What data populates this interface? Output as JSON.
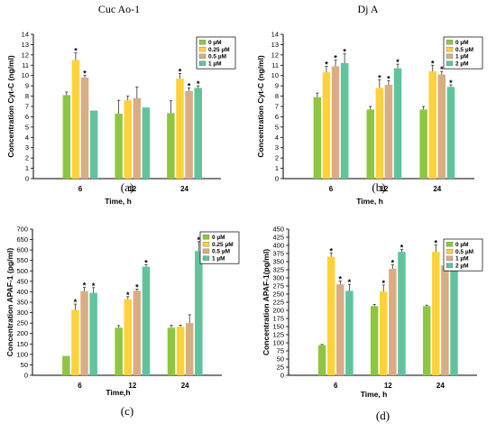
{
  "titles": [
    "Cuc Ao-1",
    "Dj A"
  ],
  "chart_data": [
    {
      "type": "bar",
      "panel_label": "(a)",
      "xlabel": "Time, h",
      "ylabel": "Concentration Cyt-C (ng/ml)",
      "ylim": [
        0,
        14
      ],
      "yticks": [
        0,
        1,
        2,
        3,
        4,
        5,
        6,
        7,
        8,
        9,
        10,
        11,
        12,
        13,
        14
      ],
      "categories": [
        "6",
        "12",
        "24"
      ],
      "series": [
        {
          "name": "0 µM",
          "color": "#8ec641",
          "values": [
            8.1,
            6.3,
            6.35
          ],
          "errors": [
            0.3,
            1.3,
            1.2
          ],
          "stars": [
            false,
            false,
            false
          ]
        },
        {
          "name": "0.25 µM",
          "color": "#ffd23a",
          "values": [
            11.5,
            7.6,
            9.7
          ],
          "errors": [
            0.7,
            0.4,
            0.5
          ],
          "stars": [
            true,
            false,
            true
          ]
        },
        {
          "name": "0.5 µM",
          "color": "#d9ad83",
          "values": [
            9.8,
            7.8,
            8.5
          ],
          "errors": [
            0.2,
            1.1,
            0.3
          ],
          "stars": [
            true,
            false,
            true
          ]
        },
        {
          "name": "1 µM",
          "color": "#5fc49b",
          "values": [
            6.6,
            6.9,
            8.8
          ],
          "errors": [
            0,
            0,
            0.2
          ],
          "stars": [
            false,
            false,
            true
          ]
        }
      ],
      "legend": "top-right",
      "grid": false
    },
    {
      "type": "bar",
      "panel_label": "(b)",
      "xlabel": "Time, h",
      "ylabel": "Concentration Cyt-C (ng/ml)",
      "ylim": [
        0,
        14
      ],
      "yticks": [
        0,
        1,
        2,
        3,
        4,
        5,
        6,
        7,
        8,
        9,
        10,
        11,
        12,
        13,
        14
      ],
      "categories": [
        "6",
        "12",
        "24"
      ],
      "series": [
        {
          "name": "0 µM",
          "color": "#8ec641",
          "values": [
            7.9,
            6.7,
            6.7
          ],
          "errors": [
            0.4,
            0.3,
            0.3
          ],
          "stars": [
            false,
            false,
            false
          ]
        },
        {
          "name": "0.5 µM",
          "color": "#ffd23a",
          "values": [
            10.3,
            8.8,
            10.4
          ],
          "errors": [
            0.6,
            0.8,
            0.6
          ],
          "stars": [
            true,
            true,
            true
          ]
        },
        {
          "name": "1 µM",
          "color": "#d9ad83",
          "values": [
            10.9,
            9.1,
            10.1
          ],
          "errors": [
            0.6,
            0.4,
            0.3
          ],
          "stars": [
            true,
            true,
            true
          ]
        },
        {
          "name": "2 µM",
          "color": "#5fc49b",
          "values": [
            11.2,
            10.7,
            8.9
          ],
          "errors": [
            0.9,
            0.4,
            0.2
          ],
          "stars": [
            true,
            true,
            true
          ]
        }
      ],
      "legend": "top-right",
      "grid": false
    },
    {
      "type": "bar",
      "panel_label": "(c)",
      "xlabel": "Time,h",
      "ylabel": "Concentration APAF-1 (pg/ml)",
      "ylim": [
        0,
        700
      ],
      "yticks": [
        0,
        50,
        100,
        150,
        200,
        250,
        300,
        350,
        400,
        450,
        500,
        550,
        600,
        650,
        700
      ],
      "categories": [
        "6",
        "12",
        "24"
      ],
      "series": [
        {
          "name": "0 µM",
          "color": "#8ec641",
          "values": [
            93,
            228,
            228
          ],
          "errors": [
            0,
            10,
            12
          ],
          "stars": [
            false,
            false,
            false
          ]
        },
        {
          "name": "0.25 µM",
          "color": "#ffd23a",
          "values": [
            313,
            365,
            232
          ],
          "errors": [
            28,
            12,
            8
          ],
          "stars": [
            true,
            true,
            false
          ]
        },
        {
          "name": "0.5 µM",
          "color": "#d9ad83",
          "values": [
            403,
            405,
            250
          ],
          "errors": [
            18,
            8,
            40
          ],
          "stars": [
            true,
            true,
            false
          ]
        },
        {
          "name": "1 µM",
          "color": "#5fc49b",
          "values": [
            395,
            520,
            595
          ],
          "errors": [
            25,
            10,
            45
          ],
          "stars": [
            true,
            true,
            true
          ]
        }
      ],
      "legend": "top-right",
      "grid": false
    },
    {
      "type": "bar",
      "panel_label": "(d)",
      "xlabel": "Time, h",
      "ylabel": "Concentration APAF-1(pg/ml)",
      "ylim": [
        0,
        450
      ],
      "yticks": [
        0,
        25,
        50,
        75,
        100,
        125,
        150,
        175,
        200,
        225,
        250,
        275,
        300,
        325,
        350,
        375,
        400,
        425,
        450
      ],
      "categories": [
        "6",
        "12",
        "24"
      ],
      "series": [
        {
          "name": "0 µM",
          "color": "#8ec641",
          "values": [
            93,
            213,
            213
          ],
          "errors": [
            2,
            5,
            3
          ],
          "stars": [
            false,
            false,
            false
          ]
        },
        {
          "name": "0.5 µM",
          "color": "#ffd23a",
          "values": [
            365,
            258,
            380
          ],
          "errors": [
            12,
            20,
            22
          ],
          "stars": [
            true,
            true,
            true
          ]
        },
        {
          "name": "1 µM",
          "color": "#d9ad83",
          "values": [
            280,
            328,
            338
          ],
          "errors": [
            10,
            12,
            20
          ],
          "stars": [
            true,
            true,
            true
          ]
        },
        {
          "name": "2 µM",
          "color": "#5fc49b",
          "values": [
            260,
            380,
            328
          ],
          "errors": [
            20,
            8,
            22
          ],
          "stars": [
            true,
            true,
            true
          ]
        }
      ],
      "legend": "top-right",
      "grid": false
    }
  ]
}
